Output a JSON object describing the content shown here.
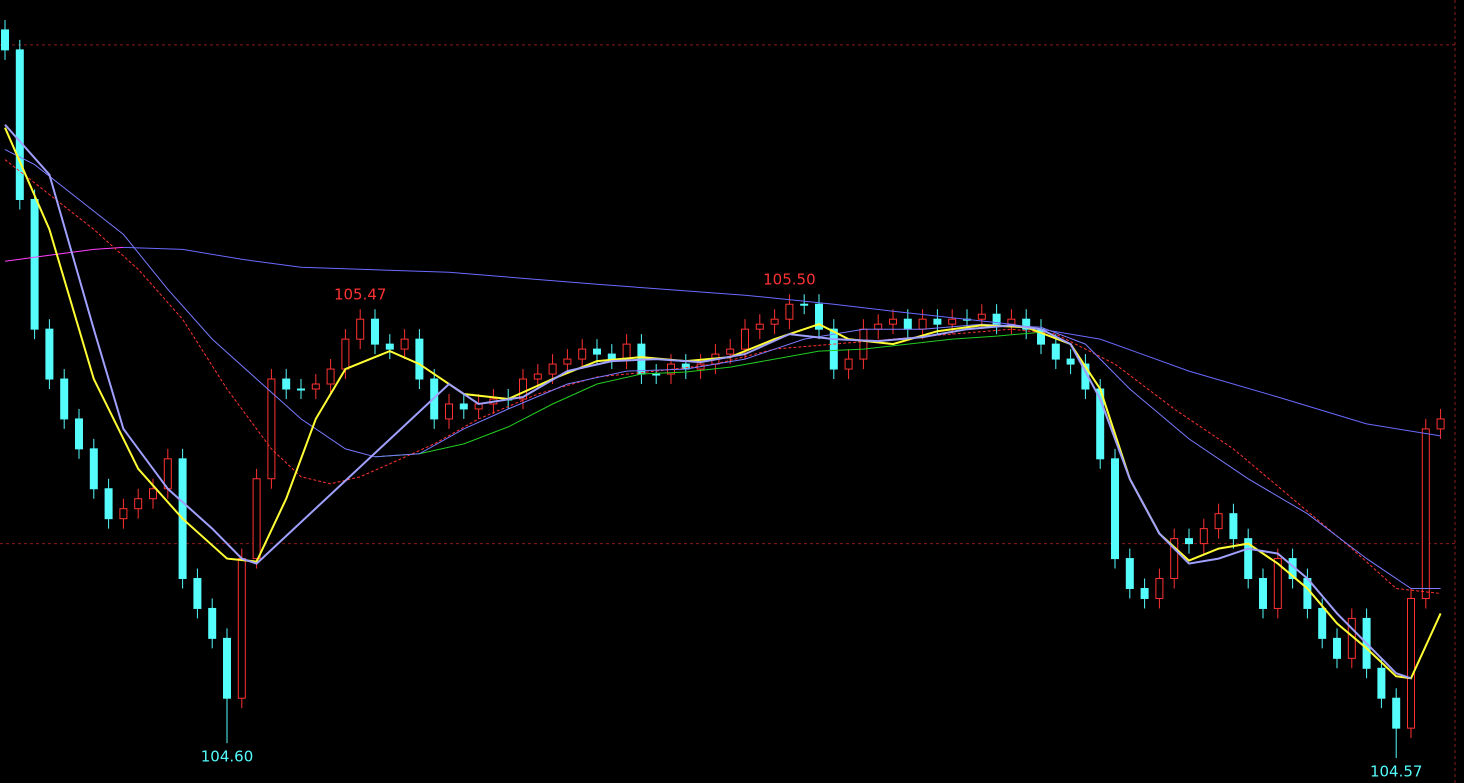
{
  "chart_data": {
    "type": "candlestick",
    "ylim": [
      104.52,
      106.09
    ],
    "hlines": [
      105,
      106
    ],
    "up_color": "#ff3232",
    "down_color": "#54fcfc",
    "high_label_color": "#ff3232",
    "low_label_color": "#54fcfc",
    "ohlc": [
      [
        106.03,
        106.05,
        105.97,
        105.99
      ],
      [
        105.99,
        106.01,
        105.67,
        105.69
      ],
      [
        105.69,
        105.71,
        105.41,
        105.43
      ],
      [
        105.43,
        105.45,
        105.31,
        105.33
      ],
      [
        105.33,
        105.35,
        105.23,
        105.25
      ],
      [
        105.25,
        105.27,
        105.17,
        105.19
      ],
      [
        105.19,
        105.21,
        105.09,
        105.11
      ],
      [
        105.11,
        105.13,
        105.03,
        105.05
      ],
      [
        105.05,
        105.09,
        105.03,
        105.07
      ],
      [
        105.07,
        105.11,
        105.05,
        105.09
      ],
      [
        105.09,
        105.13,
        105.07,
        105.11
      ],
      [
        105.11,
        105.19,
        105.09,
        105.17
      ],
      [
        105.17,
        105.19,
        104.91,
        104.93
      ],
      [
        104.93,
        104.95,
        104.85,
        104.87
      ],
      [
        104.87,
        104.89,
        104.79,
        104.81
      ],
      [
        104.81,
        104.83,
        104.6,
        104.69
      ],
      [
        104.69,
        104.99,
        104.67,
        104.97
      ],
      [
        104.97,
        105.15,
        104.95,
        105.13
      ],
      [
        105.13,
        105.35,
        105.11,
        105.33
      ],
      [
        105.33,
        105.35,
        105.29,
        105.31
      ],
      [
        105.31,
        105.33,
        105.29,
        105.31
      ],
      [
        105.31,
        105.34,
        105.29,
        105.32
      ],
      [
        105.32,
        105.37,
        105.3,
        105.35
      ],
      [
        105.35,
        105.43,
        105.33,
        105.41
      ],
      [
        105.41,
        105.47,
        105.39,
        105.45
      ],
      [
        105.45,
        105.47,
        105.38,
        105.4
      ],
      [
        105.4,
        105.42,
        105.37,
        105.39
      ],
      [
        105.39,
        105.43,
        105.37,
        105.41
      ],
      [
        105.41,
        105.43,
        105.31,
        105.33
      ],
      [
        105.33,
        105.35,
        105.23,
        105.25
      ],
      [
        105.25,
        105.3,
        105.23,
        105.28
      ],
      [
        105.28,
        105.3,
        105.25,
        105.27
      ],
      [
        105.27,
        105.3,
        105.25,
        105.28
      ],
      [
        105.28,
        105.31,
        105.26,
        105.29
      ],
      [
        105.29,
        105.31,
        105.27,
        105.29
      ],
      [
        105.29,
        105.35,
        105.27,
        105.33
      ],
      [
        105.33,
        105.36,
        105.31,
        105.34
      ],
      [
        105.34,
        105.38,
        105.32,
        105.36
      ],
      [
        105.36,
        105.39,
        105.34,
        105.37
      ],
      [
        105.37,
        105.41,
        105.35,
        105.39
      ],
      [
        105.39,
        105.41,
        105.36,
        105.38
      ],
      [
        105.38,
        105.4,
        105.35,
        105.37
      ],
      [
        105.37,
        105.42,
        105.35,
        105.4
      ],
      [
        105.4,
        105.42,
        105.32,
        105.34
      ],
      [
        105.34,
        105.36,
        105.32,
        105.34
      ],
      [
        105.34,
        105.38,
        105.32,
        105.36
      ],
      [
        105.36,
        105.38,
        105.33,
        105.35
      ],
      [
        105.35,
        105.38,
        105.33,
        105.36
      ],
      [
        105.36,
        105.4,
        105.34,
        105.38
      ],
      [
        105.38,
        105.41,
        105.36,
        105.39
      ],
      [
        105.39,
        105.45,
        105.37,
        105.43
      ],
      [
        105.43,
        105.46,
        105.41,
        105.44
      ],
      [
        105.44,
        105.47,
        105.42,
        105.45
      ],
      [
        105.45,
        105.5,
        105.43,
        105.48
      ],
      [
        105.48,
        105.5,
        105.46,
        105.48
      ],
      [
        105.48,
        105.5,
        105.41,
        105.43
      ],
      [
        105.43,
        105.45,
        105.33,
        105.35
      ],
      [
        105.35,
        105.39,
        105.33,
        105.37
      ],
      [
        105.37,
        105.45,
        105.35,
        105.43
      ],
      [
        105.43,
        105.46,
        105.41,
        105.44
      ],
      [
        105.44,
        105.47,
        105.42,
        105.45
      ],
      [
        105.45,
        105.47,
        105.41,
        105.43
      ],
      [
        105.43,
        105.47,
        105.41,
        105.45
      ],
      [
        105.45,
        105.47,
        105.42,
        105.44
      ],
      [
        105.44,
        105.47,
        105.42,
        105.45
      ],
      [
        105.45,
        105.47,
        105.43,
        105.45
      ],
      [
        105.45,
        105.48,
        105.43,
        105.46
      ],
      [
        105.46,
        105.48,
        105.42,
        105.44
      ],
      [
        105.44,
        105.47,
        105.42,
        105.45
      ],
      [
        105.45,
        105.47,
        105.41,
        105.43
      ],
      [
        105.43,
        105.45,
        105.38,
        105.4
      ],
      [
        105.4,
        105.42,
        105.35,
        105.37
      ],
      [
        105.37,
        105.39,
        105.34,
        105.36
      ],
      [
        105.36,
        105.38,
        105.29,
        105.31
      ],
      [
        105.31,
        105.33,
        105.15,
        105.17
      ],
      [
        105.17,
        105.19,
        104.95,
        104.97
      ],
      [
        104.97,
        104.99,
        104.89,
        104.91
      ],
      [
        104.91,
        104.93,
        104.87,
        104.89
      ],
      [
        104.89,
        104.95,
        104.87,
        104.93
      ],
      [
        104.93,
        105.03,
        104.91,
        105.01
      ],
      [
        105.01,
        105.03,
        104.98,
        105.0
      ],
      [
        105.0,
        105.05,
        104.98,
        105.03
      ],
      [
        105.03,
        105.08,
        105.01,
        105.06
      ],
      [
        105.06,
        105.08,
        104.99,
        105.01
      ],
      [
        105.01,
        105.03,
        104.91,
        104.93
      ],
      [
        104.93,
        104.95,
        104.85,
        104.87
      ],
      [
        104.87,
        104.99,
        104.85,
        104.97
      ],
      [
        104.97,
        104.99,
        104.91,
        104.93
      ],
      [
        104.93,
        104.95,
        104.85,
        104.87
      ],
      [
        104.87,
        104.89,
        104.79,
        104.81
      ],
      [
        104.81,
        104.83,
        104.75,
        104.77
      ],
      [
        104.77,
        104.87,
        104.75,
        104.85
      ],
      [
        104.85,
        104.87,
        104.73,
        104.75
      ],
      [
        104.75,
        104.77,
        104.67,
        104.69
      ],
      [
        104.69,
        104.71,
        104.57,
        104.63
      ],
      [
        104.63,
        104.91,
        104.61,
        104.89
      ],
      [
        104.89,
        105.25,
        104.87,
        105.23
      ],
      [
        105.23,
        105.27,
        105.21,
        105.25
      ]
    ],
    "series": [
      {
        "color": "#ff40ff",
        "width": 1,
        "x": [
          0,
          3,
          6,
          8
        ],
        "values": [
          105.566,
          105.578,
          105.59,
          105.594
        ]
      },
      {
        "color": "#6a6aff",
        "width": 1,
        "x": [
          8,
          12,
          16,
          20,
          30,
          40,
          50,
          56,
          60,
          68,
          74,
          80,
          86,
          92,
          97
        ],
        "values": [
          105.594,
          105.59,
          105.57,
          105.554,
          105.544,
          105.52,
          105.498,
          105.48,
          105.466,
          105.44,
          105.41,
          105.346,
          105.294,
          105.24,
          105.216
        ]
      },
      {
        "color": "#22cc22",
        "width": 1,
        "x": [
          25,
          28,
          31,
          34,
          37,
          40,
          43,
          46,
          49,
          52,
          55,
          58,
          61,
          64,
          67,
          70
        ],
        "values": [
          105.174,
          105.18,
          105.2,
          105.234,
          105.28,
          105.32,
          105.34,
          105.344,
          105.354,
          105.37,
          105.386,
          105.39,
          105.4,
          105.41,
          105.416,
          105.424
        ]
      },
      {
        "color": "#ff3232",
        "width": 1,
        "dashed": true,
        "x": [
          0,
          3,
          6,
          9,
          12,
          15,
          18,
          20,
          22,
          24,
          26,
          29,
          32,
          36,
          40,
          44,
          48,
          52,
          56,
          60,
          64,
          68,
          71,
          75,
          79,
          83,
          87,
          91,
          94,
          97
        ],
        "values": [
          105.77,
          105.7,
          105.63,
          105.55,
          105.45,
          105.31,
          105.19,
          105.134,
          105.12,
          105.134,
          105.16,
          105.2,
          105.25,
          105.3,
          105.334,
          105.346,
          105.36,
          105.39,
          105.4,
          105.41,
          105.42,
          105.43,
          105.42,
          105.36,
          105.27,
          105.19,
          105.09,
          104.99,
          104.91,
          104.9
        ]
      },
      {
        "color": "#7a7aff",
        "width": 1,
        "x": [
          0,
          2,
          5,
          8,
          11,
          14,
          17,
          20,
          23,
          25,
          28,
          31,
          34,
          38,
          42,
          46,
          50,
          54,
          58,
          62,
          66,
          70,
          73,
          76,
          80,
          84,
          88,
          92,
          95,
          97
        ],
        "values": [
          105.79,
          105.76,
          105.69,
          105.62,
          105.51,
          105.41,
          105.33,
          105.25,
          105.19,
          105.174,
          105.18,
          105.23,
          105.27,
          105.32,
          105.346,
          105.35,
          105.37,
          105.41,
          105.43,
          105.43,
          105.44,
          105.434,
          105.4,
          105.31,
          105.21,
          105.13,
          105.06,
          104.97,
          104.91,
          104.91
        ]
      },
      {
        "color": "#ffff33",
        "width": 2,
        "x": [
          0,
          3,
          6,
          9,
          12,
          15,
          17,
          19,
          21,
          23,
          26,
          28,
          31,
          34,
          37,
          40,
          43,
          46,
          49,
          52,
          55,
          57,
          60,
          63,
          66,
          69,
          72,
          74,
          76,
          78,
          80,
          82,
          84,
          86,
          88,
          90,
          92,
          94,
          95,
          97
        ],
        "values": [
          105.834,
          105.63,
          105.33,
          105.15,
          105.05,
          104.97,
          104.964,
          105.09,
          105.25,
          105.35,
          105.386,
          105.36,
          105.3,
          105.29,
          105.33,
          105.366,
          105.374,
          105.366,
          105.374,
          105.41,
          105.44,
          105.41,
          105.4,
          105.426,
          105.438,
          105.434,
          105.4,
          105.31,
          105.13,
          105.02,
          104.966,
          104.99,
          105.0,
          104.96,
          104.91,
          104.84,
          104.79,
          104.734,
          104.73,
          104.86
        ]
      },
      {
        "color": "#a0a0ff",
        "width": 2,
        "x": [
          0,
          3,
          6,
          8,
          11,
          14,
          16,
          17,
          30,
          32,
          35,
          38,
          41,
          44,
          47,
          50,
          53,
          56,
          59,
          62,
          65,
          68,
          70,
          72,
          74,
          76,
          78,
          80,
          82,
          84,
          86,
          88,
          90,
          92,
          94,
          95
        ],
        "values": [
          105.84,
          105.74,
          105.43,
          105.23,
          105.11,
          105.03,
          104.97,
          104.96,
          105.32,
          105.28,
          105.294,
          105.346,
          105.366,
          105.37,
          105.364,
          105.38,
          105.42,
          105.41,
          105.406,
          105.414,
          105.43,
          105.438,
          105.43,
          105.4,
          105.29,
          105.13,
          105.02,
          104.96,
          104.97,
          104.99,
          104.98,
          104.93,
          104.86,
          104.8,
          104.74,
          104.73
        ]
      }
    ],
    "annotations": [
      {
        "value": 104.6,
        "label": "104.60"
      },
      {
        "value": 105.47,
        "label": "105.47"
      },
      {
        "value": 105.5,
        "label": "105.50"
      },
      {
        "value": 104.57,
        "label": "104.57"
      }
    ]
  }
}
